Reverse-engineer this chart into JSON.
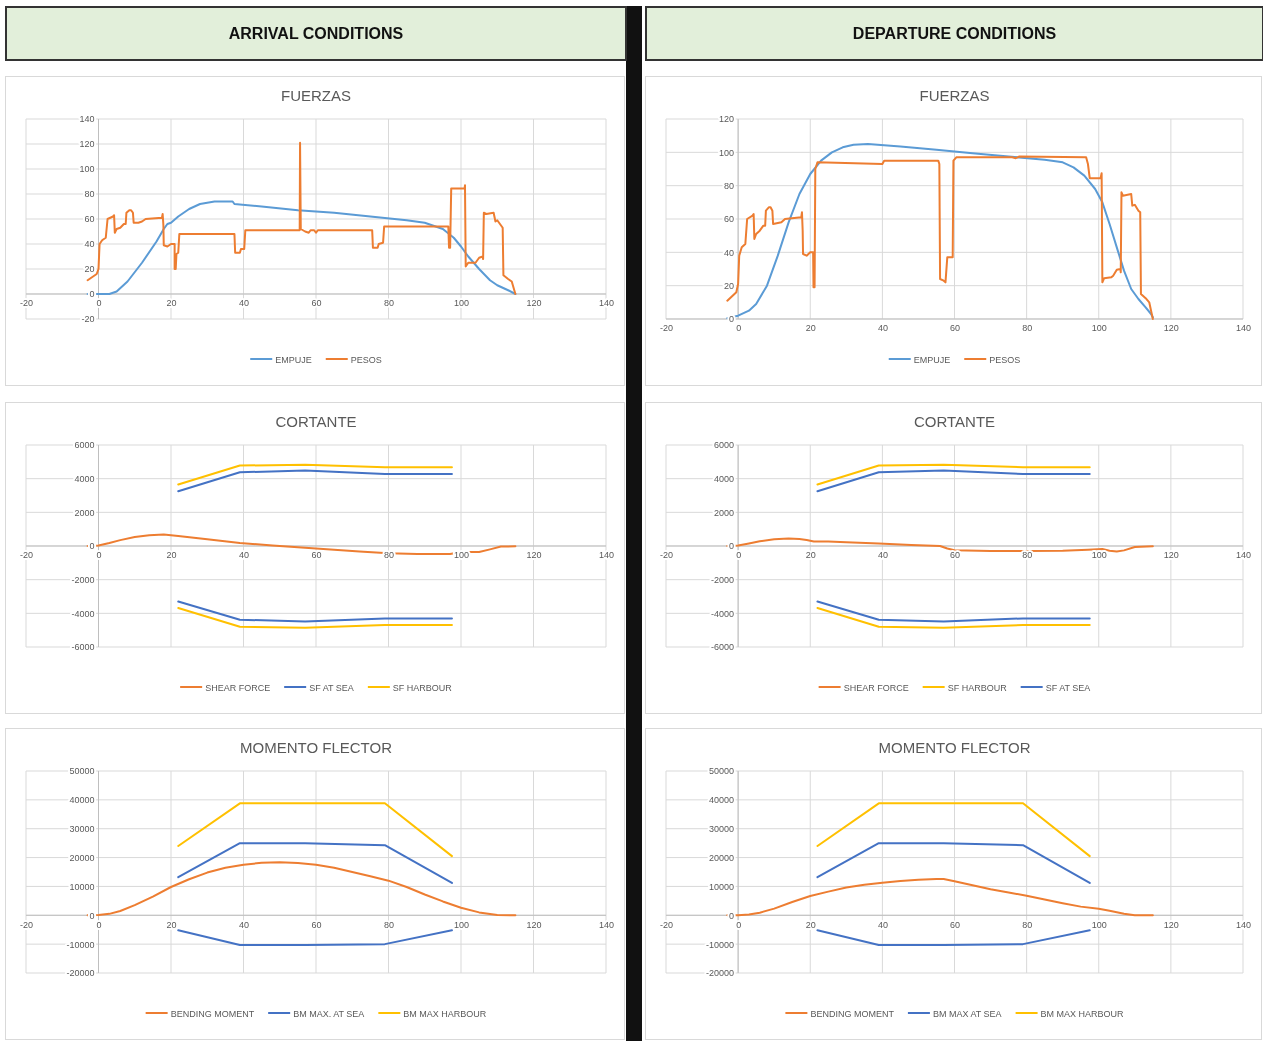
{
  "chart_data": [
    {
      "type": "other",
      "title": "ARRIVAL CONDITIONS"
    },
    {
      "type": "other",
      "title": "DEPARTURE CONDITIONS"
    },
    {
      "type": "line",
      "title": "FUERZAS",
      "xlim": [
        -20,
        140
      ],
      "xticks": [
        -20,
        0,
        20,
        40,
        60,
        80,
        100,
        120,
        140
      ],
      "ylim": [
        -20,
        140
      ],
      "yticks": [
        -20,
        0,
        20,
        40,
        60,
        80,
        100,
        120,
        140
      ],
      "grid": true,
      "legend": "bottom",
      "series": [
        {
          "name": "EMPUJE",
          "color": "#5b9bd5",
          "x": [
            -3,
            3,
            5,
            8,
            12,
            16,
            18,
            19,
            20,
            22,
            25,
            28,
            32,
            37,
            37.5,
            45,
            55,
            65,
            75,
            85,
            90,
            95,
            98,
            100,
            102,
            105,
            108,
            110,
            113,
            115
          ],
          "values": [
            0,
            0,
            2,
            10,
            25,
            42,
            52,
            56,
            57,
            62,
            68,
            72,
            74,
            74,
            72,
            70,
            67,
            65,
            62,
            59,
            57,
            52,
            45,
            38,
            30,
            20,
            11,
            7,
            3,
            0
          ]
        },
        {
          "name": "PESOS",
          "color": "#ed7d31",
          "x": [
            -3,
            -0.5,
            0,
            0.3,
            1,
            2,
            2.5,
            4,
            4.3,
            4.5,
            5,
            6,
            7,
            7.5,
            7.7,
            8.5,
            9,
            9.5,
            9.7,
            11,
            12,
            13,
            17.5,
            17.7,
            17.9,
            18,
            19,
            20,
            21,
            21,
            21.3,
            21.5,
            22,
            22.3,
            37.5,
            37.7,
            39,
            39.3,
            40.2,
            40.5,
            55.5,
            55.6,
            55.8,
            57,
            58,
            58.5,
            59.5,
            60,
            60.5,
            75.5,
            75.7,
            77,
            77.3,
            78.5,
            78.8,
            96.5,
            96.7,
            97,
            97.3,
            101,
            101.1,
            101.3,
            102,
            104,
            105,
            106,
            106.1,
            106.3,
            107,
            109,
            109.5,
            110,
            110.5,
            111.5,
            111.7,
            113,
            114,
            115
          ],
          "values": [
            11,
            16,
            20,
            40,
            43,
            45,
            60,
            62,
            63,
            49,
            52,
            53,
            56,
            56,
            65,
            67,
            67,
            65,
            57,
            57,
            58,
            60,
            61,
            64,
            55,
            39,
            38,
            40,
            40,
            20,
            20,
            32,
            33,
            48,
            48,
            33,
            33,
            36,
            36,
            51,
            51,
            121,
            52,
            50,
            49,
            51,
            51,
            49,
            51,
            51,
            37,
            37,
            40,
            41,
            54,
            54,
            37,
            37,
            84.5,
            84.5,
            87,
            22,
            25,
            25,
            29,
            30,
            28,
            65,
            64,
            65,
            58,
            59,
            57,
            53,
            15,
            12,
            10,
            0
          ]
        }
      ]
    },
    {
      "type": "line",
      "title": "FUERZAS",
      "xlim": [
        -20,
        140
      ],
      "xticks": [
        -20,
        0,
        20,
        40,
        60,
        80,
        100,
        120,
        140
      ],
      "ylim": [
        0,
        120
      ],
      "yticks": [
        0,
        20,
        40,
        60,
        80,
        100,
        120
      ],
      "grid": true,
      "legend": "bottom",
      "series": [
        {
          "name": "EMPUJE",
          "color": "#5b9bd5",
          "x": [
            -3,
            0,
            3,
            5,
            8,
            11,
            14,
            17,
            20,
            23,
            26,
            29,
            32,
            36,
            45,
            55,
            65,
            75,
            85,
            90,
            93,
            96,
            99,
            101,
            103,
            105,
            107,
            109,
            111,
            113,
            114.5,
            115
          ],
          "values": [
            0.5,
            2,
            5,
            9,
            20,
            38,
            58,
            75,
            87,
            95,
            100,
            103,
            104.5,
            105,
            103.5,
            101.5,
            99.5,
            97.5,
            95.5,
            94,
            91,
            86,
            78,
            70,
            57,
            43,
            29,
            18,
            12,
            7,
            3,
            1
          ]
        },
        {
          "name": "PESOS",
          "color": "#ed7d31",
          "x": [
            -3,
            -0.5,
            0,
            0.3,
            1,
            2,
            2.5,
            4,
            4.3,
            4.5,
            5,
            6,
            7,
            7.5,
            7.7,
            8.5,
            9,
            9.5,
            9.7,
            12,
            13,
            17.5,
            17.7,
            17.9,
            18,
            19,
            20,
            20.8,
            20.9,
            21.2,
            21.4,
            22,
            40,
            40.5,
            55.5,
            55.8,
            56,
            57,
            57.5,
            58,
            59.5,
            59.7,
            60.5,
            76,
            77,
            78,
            96.5,
            97,
            97.5,
            100.5,
            100.8,
            101,
            101.5,
            103.5,
            104,
            105,
            106,
            106.1,
            106.3,
            106.7,
            109,
            109.3,
            110,
            111,
            111.5,
            111.7,
            113,
            114,
            115
          ],
          "values": [
            11,
            16,
            21,
            38,
            43,
            45,
            60,
            62,
            63,
            48,
            51,
            53,
            56,
            56,
            65,
            67,
            67,
            65,
            57,
            58,
            60,
            61,
            64,
            53,
            39,
            38,
            40,
            40,
            19,
            19,
            90,
            94,
            93,
            95,
            95,
            93,
            24,
            23,
            22,
            37,
            37,
            95,
            97,
            97,
            96.5,
            97.5,
            97,
            93,
            84.5,
            84.5,
            87.5,
            22,
            24.5,
            25,
            26,
            29.5,
            30,
            28,
            76,
            74,
            75,
            68,
            68.5,
            65,
            64,
            15,
            12.5,
            10,
            0
          ]
        }
      ]
    },
    {
      "type": "line",
      "title": "CORTANTE",
      "xlim": [
        -20,
        140
      ],
      "xticks": [
        -20,
        0,
        20,
        40,
        60,
        80,
        100,
        120,
        140
      ],
      "ylim": [
        -6000,
        6000
      ],
      "yticks": [
        -6000,
        -4000,
        -2000,
        0,
        2000,
        4000,
        6000
      ],
      "grid": true,
      "legend": "bottom",
      "series": [
        {
          "name": "SHEAR FORCE",
          "color": "#ed7d31",
          "x": [
            -3,
            0,
            3,
            6,
            10,
            14,
            18,
            22,
            30,
            39,
            48,
            57,
            65,
            72,
            80,
            88,
            97,
            100,
            102,
            105,
            108,
            111,
            115
          ],
          "values": [
            0,
            30,
            180,
            350,
            530,
            640,
            680,
            600,
            400,
            180,
            30,
            -100,
            -220,
            -330,
            -430,
            -480,
            -480,
            -360,
            -350,
            -360,
            -200,
            -30,
            -20
          ]
        },
        {
          "name": "SF AT SEA",
          "color": "#4472c4",
          "x": [
            22,
            39,
            57,
            79,
            97.5
          ],
          "values": [
            3250,
            4380,
            4480,
            4280,
            4280
          ]
        },
        {
          "color": "#4472c4",
          "x": [
            22,
            39,
            57,
            79,
            97.5
          ],
          "values": [
            -3300,
            -4380,
            -4480,
            -4300,
            -4300
          ]
        },
        {
          "name": "SF HARBOUR",
          "color": "#ffc000",
          "x": [
            22,
            39,
            57,
            79,
            97.5
          ],
          "values": [
            3650,
            4780,
            4820,
            4680,
            4680
          ]
        },
        {
          "color": "#ffc000",
          "x": [
            22,
            39,
            57,
            79,
            97.5
          ],
          "values": [
            -3680,
            -4800,
            -4850,
            -4700,
            -4700
          ]
        }
      ]
    },
    {
      "type": "line",
      "title": "CORTANTE",
      "xlim": [
        -20,
        140
      ],
      "xticks": [
        -20,
        0,
        20,
        40,
        60,
        80,
        100,
        120,
        140
      ],
      "ylim": [
        -6000,
        6000
      ],
      "yticks": [
        -6000,
        -4000,
        -2000,
        0,
        2000,
        4000,
        6000
      ],
      "grid": true,
      "legend": "bottom",
      "series": [
        {
          "name": "SHEAR FORCE",
          "color": "#ed7d31",
          "x": [
            -3,
            0,
            3,
            6,
            10,
            14,
            17,
            19,
            21,
            25,
            30,
            39,
            48,
            56,
            58,
            60,
            70,
            80,
            90,
            97,
            101,
            103,
            105,
            107,
            110,
            115
          ],
          "values": [
            0,
            30,
            150,
            280,
            400,
            440,
            420,
            360,
            270,
            260,
            230,
            150,
            60,
            0,
            -150,
            -250,
            -290,
            -300,
            -280,
            -220,
            -180,
            -280,
            -330,
            -260,
            -60,
            -20
          ]
        },
        {
          "name": "SF HARBOUR",
          "color": "#ffc000",
          "x": [
            22,
            39,
            57,
            79,
            97.5
          ],
          "values": [
            3650,
            4780,
            4820,
            4680,
            4680
          ]
        },
        {
          "color": "#ffc000",
          "x": [
            22,
            39,
            57,
            79,
            97.5
          ],
          "values": [
            -3680,
            -4800,
            -4850,
            -4700,
            -4700
          ]
        },
        {
          "name": "SF AT SEA",
          "color": "#4472c4",
          "x": [
            22,
            39,
            57,
            79,
            97.5
          ],
          "values": [
            3250,
            4380,
            4480,
            4280,
            4280
          ]
        },
        {
          "color": "#4472c4",
          "x": [
            22,
            39,
            57,
            79,
            97.5
          ],
          "values": [
            -3300,
            -4380,
            -4480,
            -4300,
            -4300
          ]
        }
      ]
    },
    {
      "type": "line",
      "title": "MOMENTO FLECTOR",
      "xlim": [
        -20,
        140
      ],
      "xticks": [
        -20,
        0,
        20,
        40,
        60,
        80,
        100,
        120,
        140
      ],
      "ylim": [
        -20000,
        50000
      ],
      "yticks": [
        -20000,
        -10000,
        0,
        10000,
        20000,
        30000,
        40000,
        50000
      ],
      "grid": true,
      "legend": "bottom",
      "series": [
        {
          "name": "BENDING MOMENT",
          "color": "#ed7d31",
          "x": [
            -3,
            0,
            3,
            6,
            10,
            15,
            20,
            25,
            30,
            35,
            40,
            45,
            50,
            55,
            60,
            65,
            70,
            75,
            80,
            85,
            90,
            95,
            100,
            105,
            110,
            115
          ],
          "values": [
            0,
            100,
            500,
            1500,
            3500,
            6500,
            9800,
            12500,
            14800,
            16500,
            17500,
            18200,
            18400,
            18100,
            17500,
            16500,
            15000,
            13500,
            12000,
            9800,
            7200,
            4800,
            2600,
            1000,
            100,
            0
          ]
        },
        {
          "name": "BM MAX. AT SEA",
          "color": "#4472c4",
          "x": [
            22,
            39,
            57,
            79,
            97.5
          ],
          "values": [
            13200,
            25000,
            25000,
            24300,
            11200
          ]
        },
        {
          "color": "#4472c4",
          "x": [
            22,
            39,
            57,
            79,
            97.5
          ],
          "values": [
            -5200,
            -10300,
            -10300,
            -10000,
            -5200
          ]
        },
        {
          "name": "BM MAX HARBOUR",
          "color": "#ffc000",
          "x": [
            22,
            39,
            57,
            79,
            97.5
          ],
          "values": [
            24000,
            38800,
            38800,
            38800,
            20500
          ]
        }
      ]
    },
    {
      "type": "line",
      "title": "MOMENTO FLECTOR",
      "xlim": [
        -20,
        140
      ],
      "xticks": [
        -20,
        0,
        20,
        40,
        60,
        80,
        100,
        120,
        140
      ],
      "ylim": [
        -20000,
        50000
      ],
      "yticks": [
        -20000,
        -10000,
        0,
        10000,
        20000,
        30000,
        40000,
        50000
      ],
      "grid": true,
      "legend": "bottom",
      "series": [
        {
          "name": "BENDING MOMENT",
          "color": "#ed7d31",
          "x": [
            -3,
            0,
            3,
            6,
            10,
            15,
            20,
            25,
            30,
            35,
            40,
            45,
            50,
            55,
            57,
            60,
            65,
            70,
            75,
            80,
            85,
            90,
            95,
            100,
            103,
            107,
            110,
            115
          ],
          "values": [
            0,
            0,
            300,
            900,
            2300,
            4600,
            6700,
            8200,
            9600,
            10600,
            11300,
            11900,
            12300,
            12600,
            12600,
            11800,
            10400,
            9000,
            7900,
            6800,
            5500,
            4200,
            3000,
            2300,
            1600,
            500,
            0,
            0
          ]
        },
        {
          "name": "BM MAX AT SEA",
          "color": "#4472c4",
          "x": [
            22,
            39,
            57,
            79,
            97.5
          ],
          "values": [
            13200,
            25000,
            25000,
            24300,
            11200
          ]
        },
        {
          "color": "#4472c4",
          "x": [
            22,
            39,
            57,
            79,
            97.5
          ],
          "values": [
            -5200,
            -10300,
            -10300,
            -10000,
            -5200
          ]
        },
        {
          "name": "BM MAX HARBOUR",
          "color": "#ffc000",
          "x": [
            22,
            39,
            57,
            79,
            97.5
          ],
          "values": [
            24000,
            38800,
            38800,
            38800,
            20500
          ]
        }
      ]
    }
  ]
}
